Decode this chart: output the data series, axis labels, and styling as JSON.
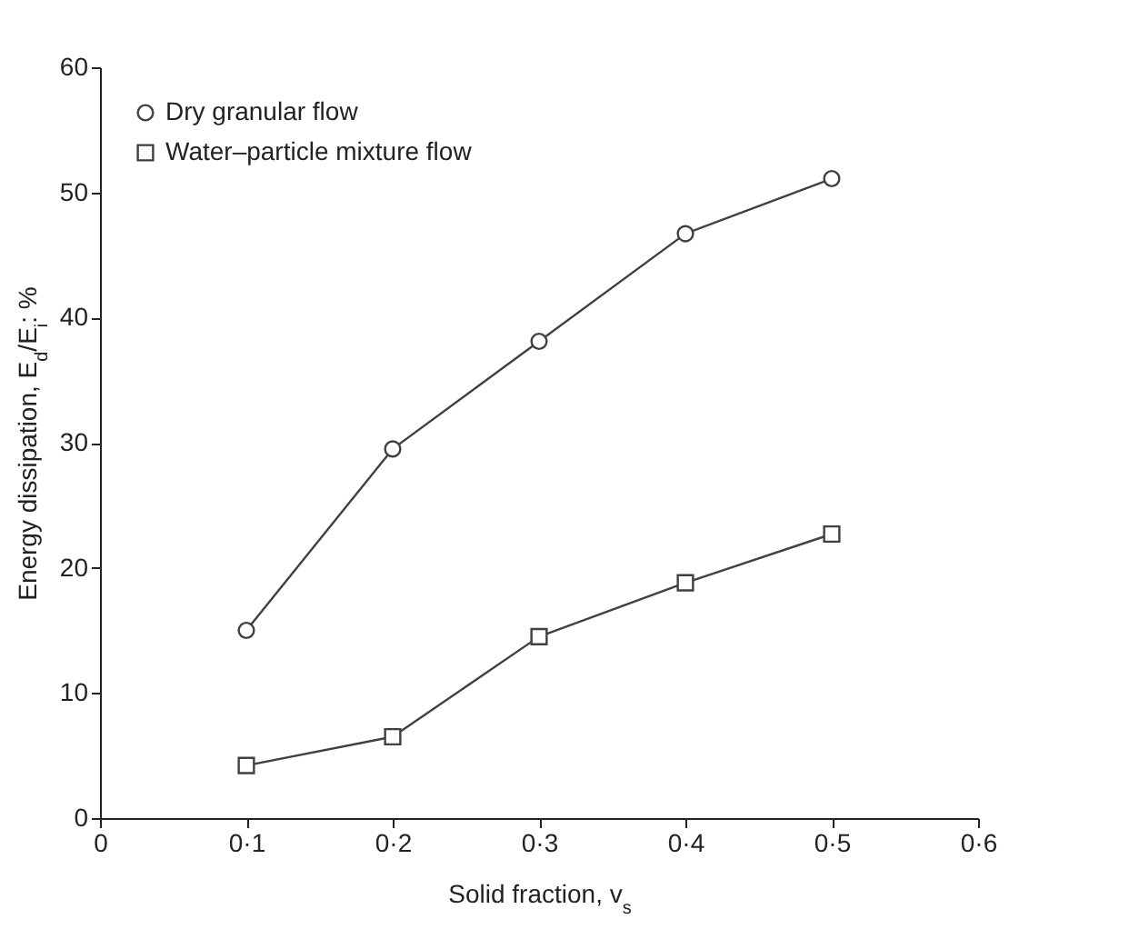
{
  "chart_data": {
    "type": "line",
    "xlabel": "Solid fraction, v$_{s}$",
    "ylabel": "Energy dissipation, E$_{d}$/E$_{i}$: %",
    "categories": [
      "0",
      "0·1",
      "0·2",
      "0·3",
      "0·4",
      "0·5",
      "0·6"
    ],
    "series": [
      {
        "name": "Dry granular flow",
        "color": "#404040",
        "marker": "circle",
        "values": [
          null,
          15,
          29.5,
          38.1,
          46.7,
          51.1,
          null
        ]
      },
      {
        "name": "Water–particle mixture flow",
        "color": "#404040",
        "marker": "square",
        "values": [
          null,
          4.2,
          6.5,
          14.5,
          18.8,
          22.7,
          null
        ]
      }
    ],
    "ylim": [
      0,
      60
    ],
    "yticks": [
      0,
      10,
      20,
      30,
      40,
      50,
      60
    ],
    "grid": false,
    "legend": "top left",
    "line_style": "solid"
  }
}
